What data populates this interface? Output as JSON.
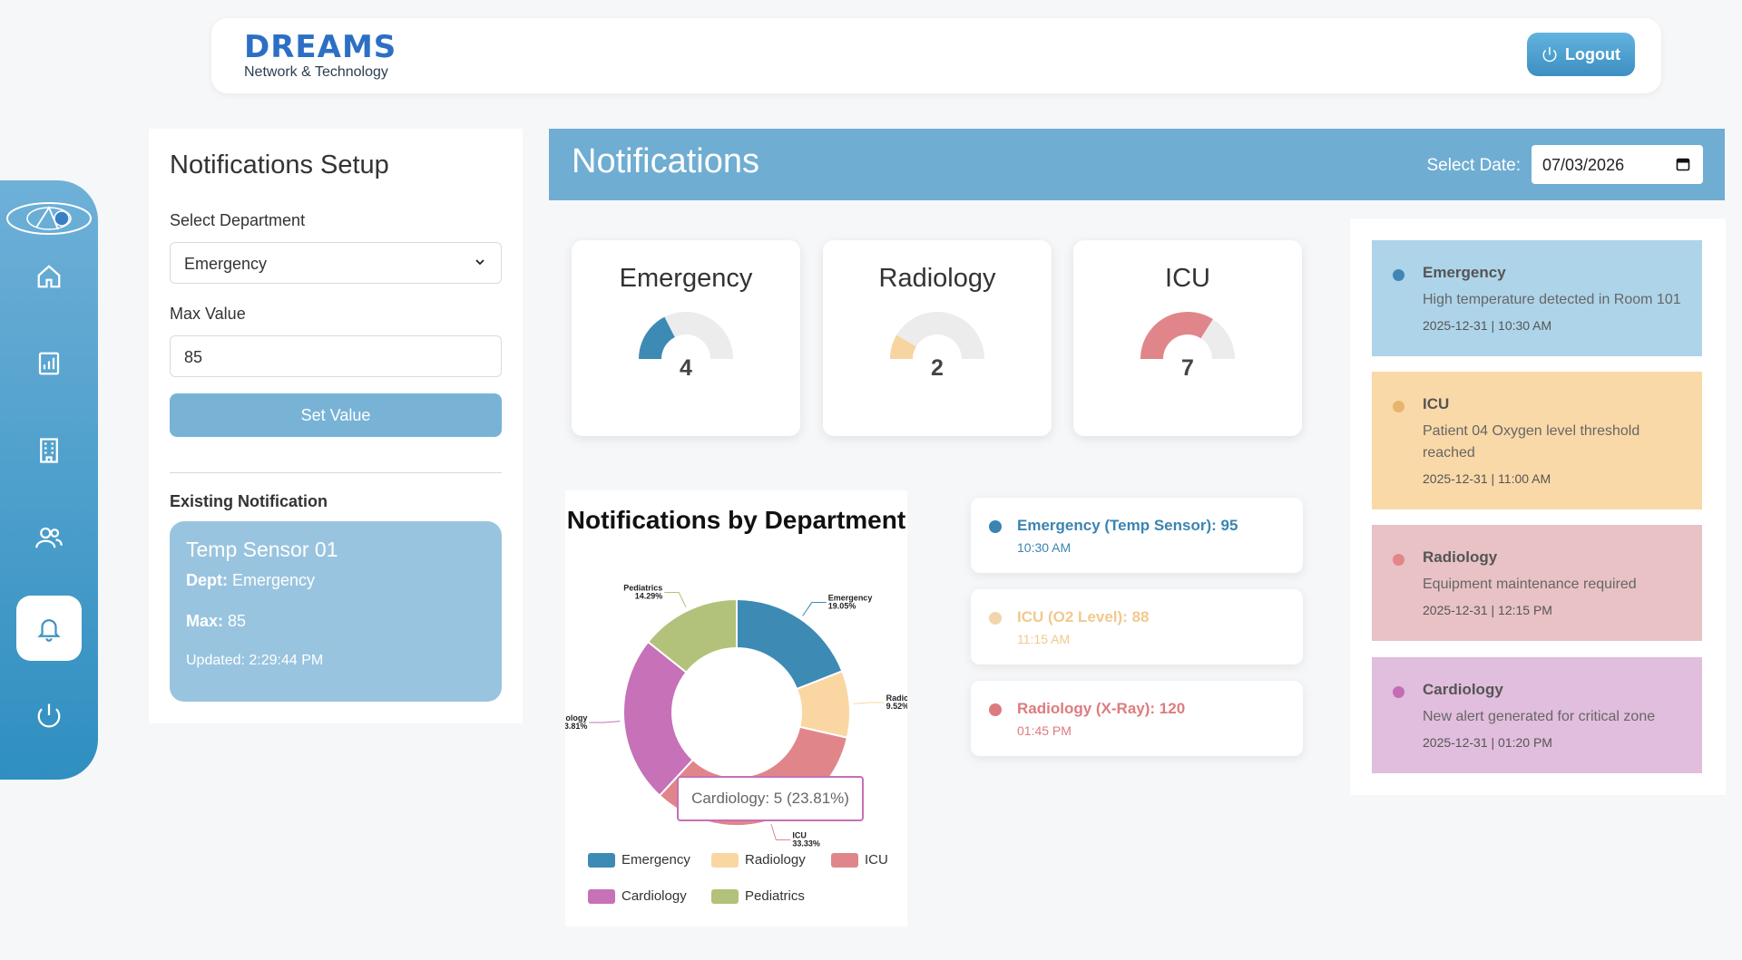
{
  "brand": {
    "name": "DREAMS",
    "tagline": "Network & Technology"
  },
  "header": {
    "logout_label": "Logout"
  },
  "nav": {
    "items": [
      {
        "id": "home",
        "icon": "home-icon"
      },
      {
        "id": "reports",
        "icon": "bar-chart-icon"
      },
      {
        "id": "building",
        "icon": "building-icon"
      },
      {
        "id": "users",
        "icon": "users-icon"
      },
      {
        "id": "notifications",
        "icon": "bell-icon",
        "active": true
      },
      {
        "id": "power",
        "icon": "power-icon"
      }
    ]
  },
  "setup": {
    "title": "Notifications Setup",
    "department_label": "Select Department",
    "department_value": "Emergency",
    "max_label": "Max Value",
    "max_value": "85",
    "set_button": "Set Value",
    "existing_label": "Existing Notification",
    "existing": {
      "name": "Temp Sensor 01",
      "dept_label": "Dept:",
      "dept_value": "Emergency",
      "max_label": "Max:",
      "max_value": "85",
      "updated": "Updated: 2:29:44 PM"
    }
  },
  "notifications_header": {
    "title": "Notifications",
    "date_label": "Select Date:",
    "date_value": "07/03/2026"
  },
  "gauges": [
    {
      "name": "Emergency",
      "value": "4",
      "fraction": 0.35,
      "color": "#3d8ab5"
    },
    {
      "name": "Radiology",
      "value": "2",
      "fraction": 0.17,
      "color": "#f6d5a0"
    },
    {
      "name": "ICU",
      "value": "7",
      "fraction": 0.68,
      "color": "#e0868a"
    }
  ],
  "chart_data": {
    "type": "pie",
    "title": "Notifications by Department",
    "categories": [
      "Emergency",
      "Radiology",
      "ICU",
      "Cardiology",
      "Pediatrics"
    ],
    "values": [
      4,
      2,
      7,
      5,
      3
    ],
    "percent_labels": [
      "19.05%",
      "9.52%",
      "33.33%",
      "23.81%",
      "14.29%"
    ],
    "colors": [
      "#3d8ab5",
      "#fad7a2",
      "#e0868a",
      "#c671b8",
      "#b2c27a"
    ],
    "donut": true,
    "tooltip": "Cardiology: 5 (23.81%)",
    "legend_position": "bottom"
  },
  "readings": [
    {
      "title": "Emergency (Temp Sensor): 95",
      "time": "10:30 AM",
      "color": "#3b84b2",
      "dot": "#3b84b2"
    },
    {
      "title": "ICU (O2 Level): 88",
      "time": "11:15 AM",
      "color": "#f1c98e",
      "dot": "#f1d6ad"
    },
    {
      "title": "Radiology (X-Ray): 120",
      "time": "01:45 PM",
      "color": "#de7b7e",
      "dot": "#de7b7e"
    }
  ],
  "alerts": [
    {
      "title": "Emergency",
      "message": "High temperature detected in Room 101",
      "time": "2025-12-31 | 10:30 AM",
      "bg": "#aed4e9",
      "dot": "#3f86b4"
    },
    {
      "title": "ICU",
      "message": "Patient 04 Oxygen level threshold reached",
      "time": "2025-12-31 | 11:00 AM",
      "bg": "#fad9a8",
      "dot": "#e8b56e"
    },
    {
      "title": "Radiology",
      "message": "Equipment maintenance required",
      "time": "2025-12-31 | 12:15 PM",
      "bg": "#e8c2c5",
      "dot": "#e2868b"
    },
    {
      "title": "Cardiology",
      "message": "New alert generated for critical zone",
      "time": "2025-12-31 | 01:20 PM",
      "bg": "#e1bedd",
      "dot": "#c46cb4"
    }
  ]
}
